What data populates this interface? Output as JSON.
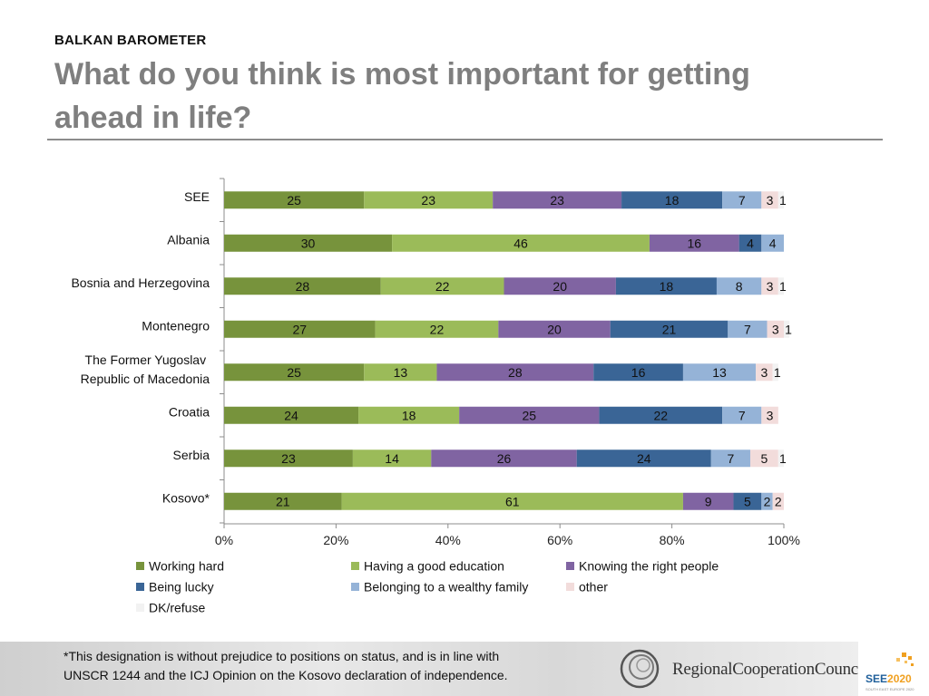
{
  "header": {
    "kicker": "BALKAN BAROMETER",
    "title": "What do you think is most important for getting ahead in life?"
  },
  "footer": {
    "note_line1": "*This designation is without prejudice to positions on status, and is in line with",
    "note_line2": "UNSCR 1244 and the ICJ Opinion on the Kosovo declaration of independence.",
    "org_name": "RegionalCooperationCouncil",
    "see_mark_a": "SEE",
    "see_mark_b": "2020",
    "see_sub": "SOUTH EAST EUROPE 2020"
  },
  "colors": {
    "working_hard": "#77933c",
    "good_education": "#9bbb59",
    "right_people": "#8064a2",
    "being_lucky": "#3a6596",
    "wealthy_family": "#95b3d7",
    "other": "#f2dcdb",
    "dk_refuse": "#f2f2f2"
  },
  "chart_data": {
    "type": "bar",
    "orientation": "horizontal",
    "stacked": true,
    "percent_stacked": true,
    "categories": [
      [
        "SEE"
      ],
      [
        "Albania"
      ],
      [
        "Bosnia and Herzegovina"
      ],
      [
        "Montenegro"
      ],
      [
        "The Former Yugoslav ",
        "Republic of Macedonia"
      ],
      [
        "Croatia"
      ],
      [
        "Serbia"
      ],
      [
        "Kosovo*"
      ]
    ],
    "series": [
      {
        "name": "Working hard",
        "color_key": "working_hard",
        "values": [
          25,
          30,
          28,
          27,
          25,
          24,
          23,
          21
        ]
      },
      {
        "name": "Having a good education",
        "color_key": "good_education",
        "values": [
          23,
          46,
          22,
          22,
          13,
          18,
          14,
          61
        ]
      },
      {
        "name": "Knowing the right people",
        "color_key": "right_people",
        "values": [
          23,
          16,
          20,
          20,
          28,
          25,
          26,
          9
        ]
      },
      {
        "name": "Being lucky",
        "color_key": "being_lucky",
        "values": [
          18,
          4,
          18,
          21,
          16,
          22,
          24,
          5
        ]
      },
      {
        "name": "Belonging to a wealthy family",
        "color_key": "wealthy_family",
        "values": [
          7,
          4,
          8,
          7,
          13,
          7,
          7,
          2
        ]
      },
      {
        "name": "other",
        "color_key": "other",
        "values": [
          3,
          0,
          3,
          3,
          3,
          3,
          5,
          2
        ]
      },
      {
        "name": "DK/refuse",
        "color_key": "dk_refuse",
        "values": [
          1,
          0,
          1,
          1,
          1,
          0,
          1,
          0
        ]
      }
    ],
    "x_ticks": [
      "0%",
      "20%",
      "40%",
      "60%",
      "80%",
      "100%"
    ],
    "xlim": [
      0,
      100
    ],
    "legend_position": "bottom",
    "title": "",
    "xlabel": "",
    "ylabel": ""
  }
}
